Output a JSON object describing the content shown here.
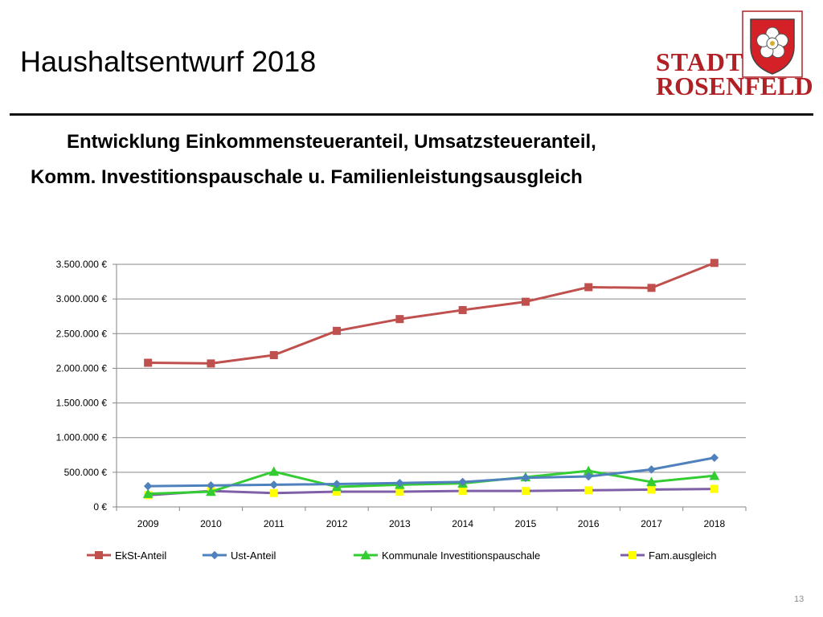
{
  "slide": {
    "title": "Haushaltsentwurf 2018",
    "subtitle_line1": "Entwicklung  Einkommensteueranteil, Umsatzsteueranteil,",
    "subtitle_line2": "Komm. Investitionspauschale u. Familienleistungsausgleich",
    "page_number": "13"
  },
  "logo": {
    "line1": "STADT",
    "line2": "ROSENFELD",
    "color": "#b02025"
  },
  "chart_data": {
    "type": "line",
    "title": "",
    "xlabel": "",
    "ylabel": "",
    "categories": [
      "2009",
      "2010",
      "2011",
      "2012",
      "2013",
      "2014",
      "2015",
      "2016",
      "2017",
      "2018"
    ],
    "ylim": [
      0,
      3500000
    ],
    "yticks": [
      0,
      500000,
      1000000,
      1500000,
      2000000,
      2500000,
      3000000,
      3500000
    ],
    "ytick_labels": [
      "0 €",
      "500.000 €",
      "1.000.000 €",
      "1.500.000 €",
      "2.000.000 €",
      "2.500.000 €",
      "3.000.000 €",
      "3.500.000 €"
    ],
    "grid": true,
    "legend_position": "bottom",
    "series": [
      {
        "name": "EkSt-Anteil",
        "color": "#c0504d",
        "marker": "square",
        "values": [
          2080000,
          2070000,
          2190000,
          2540000,
          2710000,
          2840000,
          2960000,
          3170000,
          3160000,
          3520000
        ]
      },
      {
        "name": "Ust-Anteil",
        "color": "#4f81bd",
        "marker": "diamond",
        "values": [
          300000,
          310000,
          320000,
          330000,
          345000,
          360000,
          420000,
          440000,
          540000,
          710000
        ]
      },
      {
        "name": "Kommunale Investitionspauschale",
        "color": "#33cc33",
        "marker": "triangle",
        "values": [
          190000,
          220000,
          510000,
          290000,
          320000,
          340000,
          430000,
          520000,
          360000,
          450000
        ]
      },
      {
        "name": "Fam.ausgleich",
        "color": "#7f5fa8",
        "marker": "square",
        "marker_color": "#ffff00",
        "values": [
          170000,
          230000,
          200000,
          220000,
          220000,
          230000,
          230000,
          240000,
          250000,
          260000
        ]
      }
    ]
  }
}
